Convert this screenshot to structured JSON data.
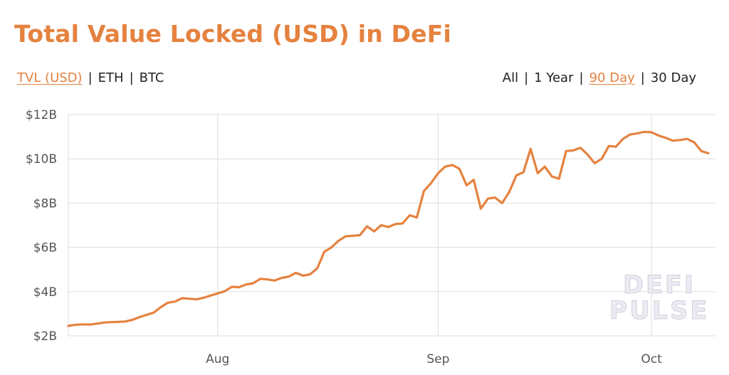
{
  "header": {
    "title": "Total Value Locked (USD) in DeFi"
  },
  "metric_tabs": [
    {
      "label": "TVL (USD)",
      "active": true
    },
    {
      "label": "ETH",
      "active": false
    },
    {
      "label": "BTC",
      "active": false
    }
  ],
  "range_tabs": [
    {
      "label": "All",
      "active": false
    },
    {
      "label": "1 Year",
      "active": false
    },
    {
      "label": "90 Day",
      "active": true
    },
    {
      "label": "30 Day",
      "active": false
    }
  ],
  "separator": "|",
  "watermark": {
    "line1": "DEFI",
    "line2": "PULSE"
  },
  "colors": {
    "accent": "#E5823F",
    "grid": "#dddddd",
    "text": "#222222"
  },
  "chart_data": {
    "type": "line",
    "title": "Total Value Locked (USD) in DeFi",
    "xlabel": "",
    "ylabel": "",
    "y_ticks": [
      "$2B",
      "$4B",
      "$6B",
      "$8B",
      "$10B",
      "$12B"
    ],
    "y_tick_values": [
      2,
      4,
      6,
      8,
      10,
      12
    ],
    "ylim": [
      2,
      12
    ],
    "y_unit": "billion USD",
    "x_ticks": [
      "Aug",
      "Sep",
      "Oct"
    ],
    "x_tick_days": [
      20,
      51,
      81
    ],
    "xlim": [
      -1,
      90
    ],
    "grid": true,
    "series": [
      {
        "name": "TVL (USD)",
        "values": [
          [
            -1,
            2.45
          ],
          [
            0,
            2.5
          ],
          [
            1,
            2.52
          ],
          [
            2,
            2.51
          ],
          [
            3,
            2.55
          ],
          [
            4,
            2.6
          ],
          [
            5,
            2.62
          ],
          [
            6,
            2.63
          ],
          [
            7,
            2.65
          ],
          [
            8,
            2.72
          ],
          [
            9,
            2.85
          ],
          [
            10,
            2.95
          ],
          [
            11,
            3.05
          ],
          [
            12,
            3.3
          ],
          [
            13,
            3.5
          ],
          [
            14,
            3.55
          ],
          [
            15,
            3.7
          ],
          [
            16,
            3.68
          ],
          [
            17,
            3.65
          ],
          [
            18,
            3.72
          ],
          [
            19,
            3.82
          ],
          [
            20,
            3.92
          ],
          [
            21,
            4.02
          ],
          [
            22,
            4.22
          ],
          [
            23,
            4.2
          ],
          [
            24,
            4.32
          ],
          [
            25,
            4.38
          ],
          [
            26,
            4.58
          ],
          [
            27,
            4.55
          ],
          [
            28,
            4.5
          ],
          [
            29,
            4.62
          ],
          [
            30,
            4.68
          ],
          [
            31,
            4.85
          ],
          [
            32,
            4.72
          ],
          [
            33,
            4.78
          ],
          [
            34,
            5.05
          ],
          [
            35,
            5.8
          ],
          [
            36,
            6.0
          ],
          [
            37,
            6.3
          ],
          [
            38,
            6.5
          ],
          [
            39,
            6.52
          ],
          [
            40,
            6.55
          ],
          [
            41,
            6.95
          ],
          [
            42,
            6.72
          ],
          [
            43,
            7.0
          ],
          [
            44,
            6.92
          ],
          [
            45,
            7.05
          ],
          [
            46,
            7.08
          ],
          [
            47,
            7.45
          ],
          [
            48,
            7.35
          ],
          [
            49,
            8.55
          ],
          [
            50,
            8.9
          ],
          [
            51,
            9.35
          ],
          [
            52,
            9.65
          ],
          [
            53,
            9.72
          ],
          [
            54,
            9.55
          ],
          [
            55,
            8.8
          ],
          [
            56,
            9.05
          ],
          [
            57,
            7.75
          ],
          [
            58,
            8.2
          ],
          [
            59,
            8.25
          ],
          [
            60,
            8.0
          ],
          [
            61,
            8.5
          ],
          [
            62,
            9.25
          ],
          [
            63,
            9.4
          ],
          [
            64,
            10.45
          ],
          [
            65,
            9.35
          ],
          [
            66,
            9.65
          ],
          [
            67,
            9.2
          ],
          [
            68,
            9.1
          ],
          [
            69,
            10.35
          ],
          [
            70,
            10.38
          ],
          [
            71,
            10.5
          ],
          [
            72,
            10.2
          ],
          [
            73,
            9.8
          ],
          [
            74,
            10.0
          ],
          [
            75,
            10.58
          ],
          [
            76,
            10.55
          ],
          [
            77,
            10.9
          ],
          [
            78,
            11.1
          ],
          [
            79,
            11.15
          ],
          [
            80,
            11.22
          ],
          [
            81,
            11.2
          ],
          [
            82,
            11.05
          ],
          [
            83,
            10.95
          ],
          [
            84,
            10.82
          ],
          [
            85,
            10.85
          ],
          [
            86,
            10.9
          ],
          [
            87,
            10.75
          ],
          [
            88,
            10.35
          ],
          [
            89,
            10.25
          ]
        ]
      }
    ]
  }
}
